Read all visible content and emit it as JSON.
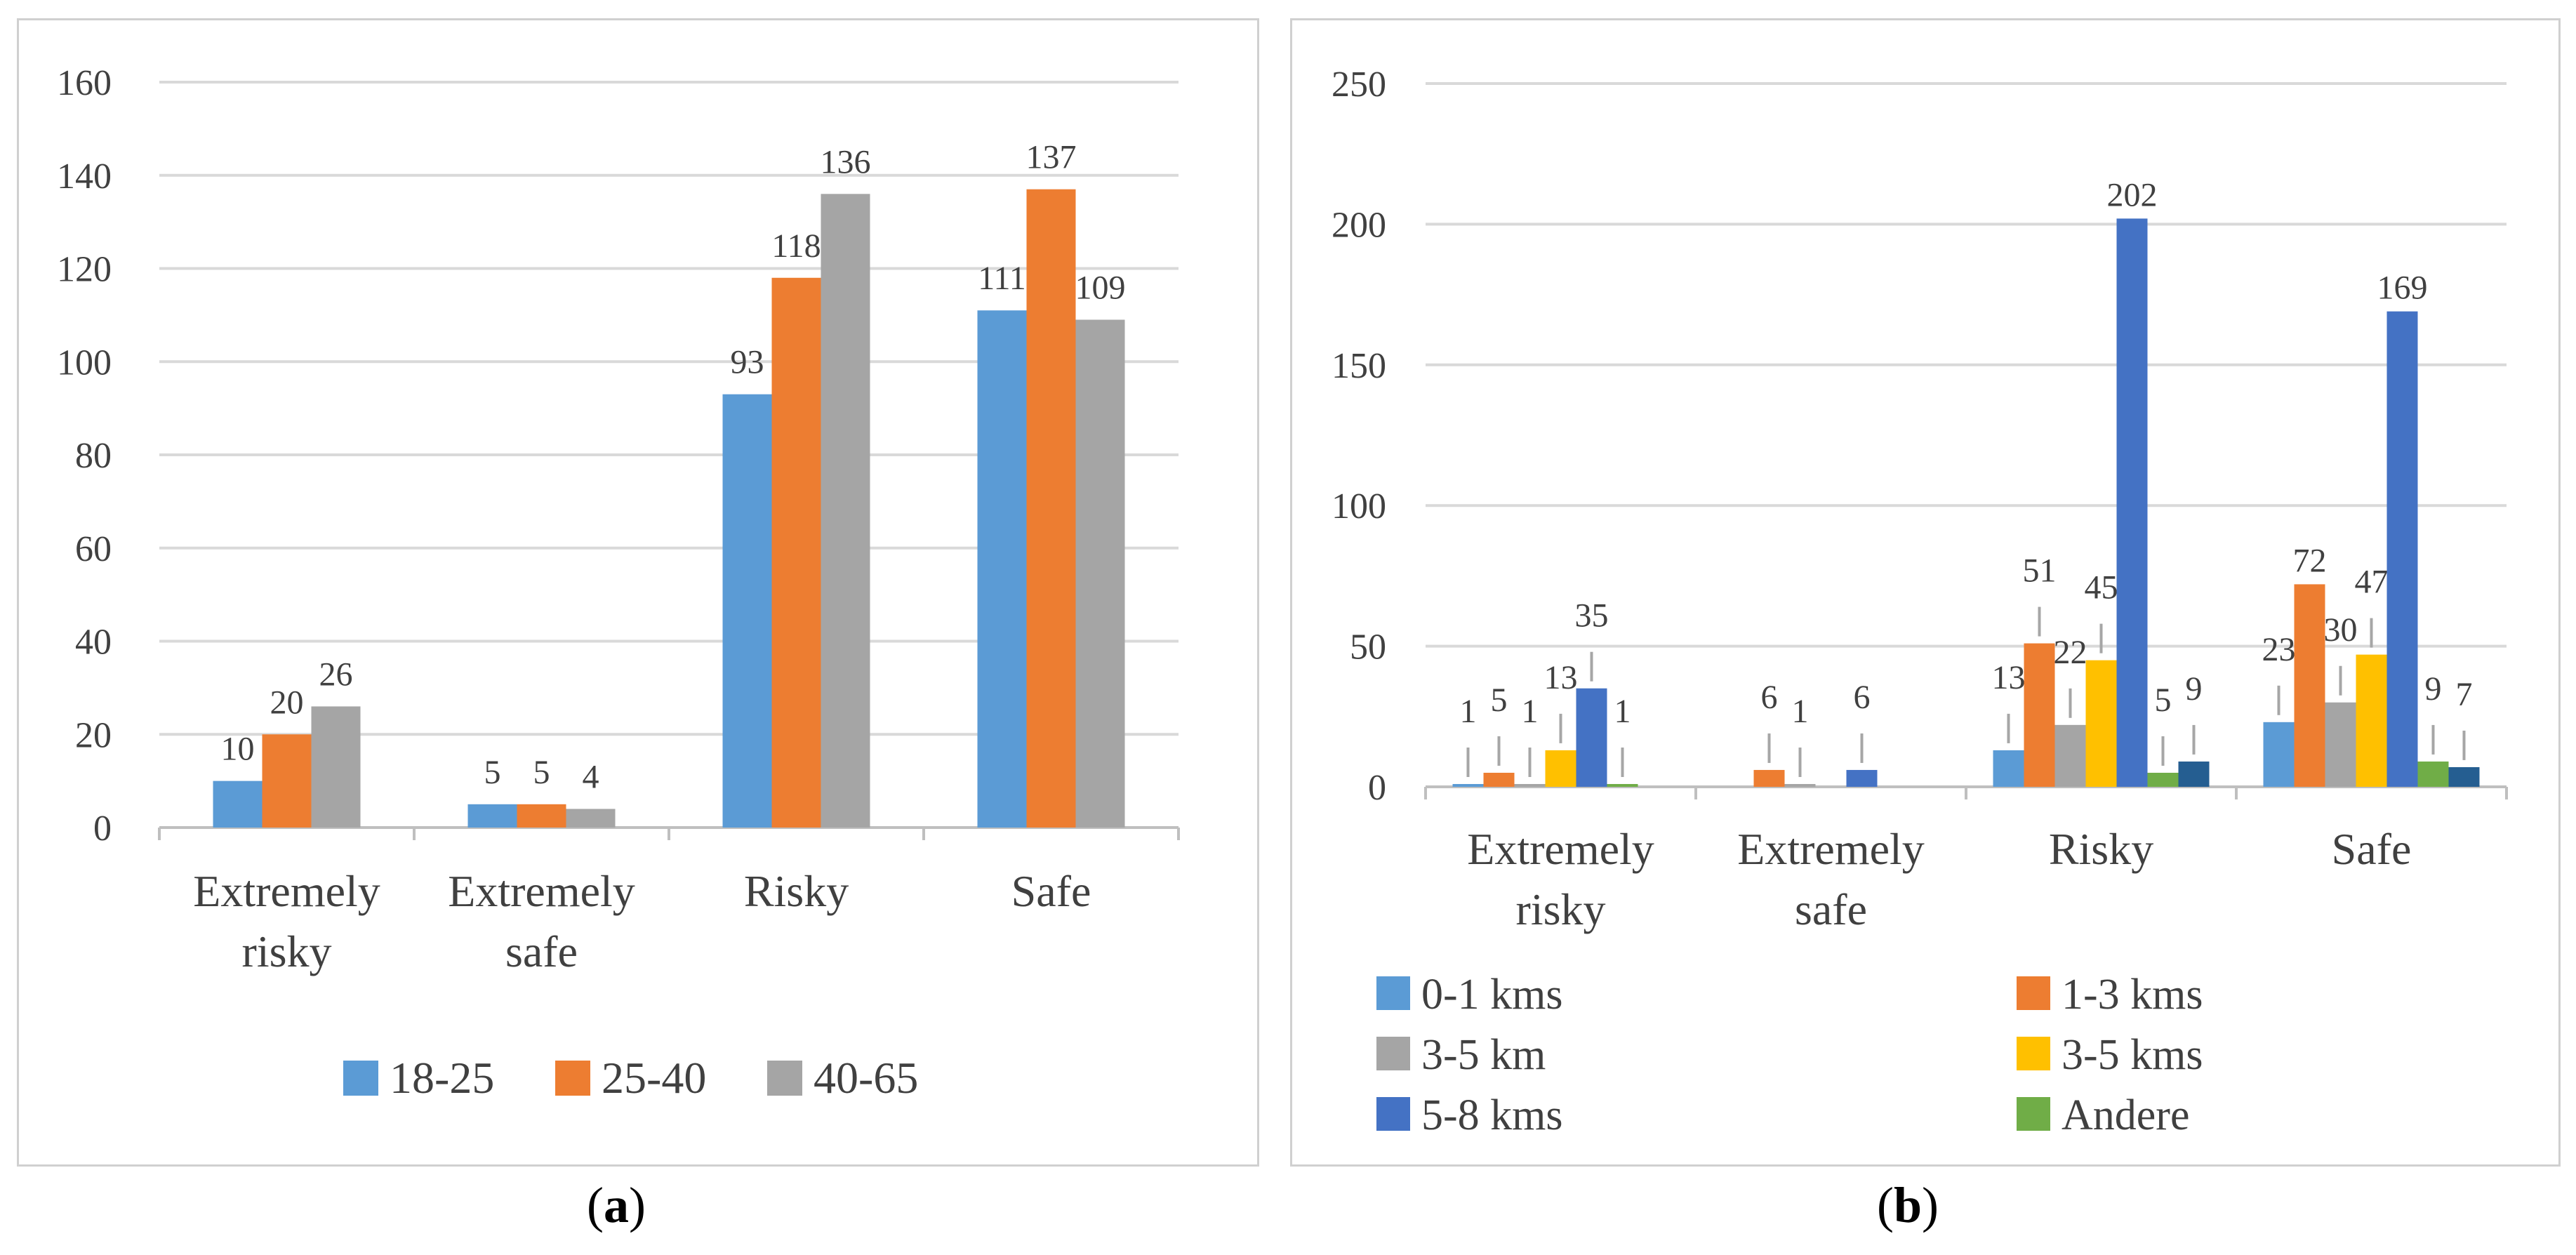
{
  "charts": {
    "a": {
      "caption": {
        "open": "(",
        "letter": "a",
        "close": ")"
      }
    },
    "b": {
      "caption": {
        "open": "(",
        "letter": "b",
        "close": ")"
      }
    }
  },
  "chart_data": [
    {
      "id": "a",
      "type": "bar",
      "categories": [
        [
          "Extremely",
          "risky"
        ],
        [
          "Extremely",
          "safe"
        ],
        [
          "Risky"
        ],
        [
          "Safe"
        ]
      ],
      "series": [
        {
          "name": "18-25",
          "color": "#5b9bd5",
          "values": [
            10,
            5,
            93,
            111
          ]
        },
        {
          "name": "25-40",
          "color": "#ed7d31",
          "values": [
            20,
            5,
            118,
            137
          ]
        },
        {
          "name": "40-65",
          "color": "#a5a5a5",
          "values": [
            26,
            4,
            136,
            109
          ]
        }
      ],
      "ylim": [
        0,
        160
      ],
      "yticks": [
        0,
        20,
        40,
        60,
        80,
        100,
        120,
        140,
        160
      ],
      "grid": true,
      "legend": "bottom"
    },
    {
      "id": "b",
      "type": "bar",
      "categories": [
        [
          "Extremely",
          "risky"
        ],
        [
          "Extremely",
          "safe"
        ],
        [
          "Risky"
        ],
        [
          "Safe"
        ]
      ],
      "series": [
        {
          "name": "0-1 kms",
          "color": "#5b9bd5",
          "values": [
            1,
            null,
            13,
            23
          ],
          "labels": [
            "1",
            "",
            "13",
            "23"
          ]
        },
        {
          "name": "1-3 kms",
          "color": "#ed7d31",
          "values": [
            5,
            6,
            51,
            72
          ],
          "labels": [
            "5",
            "6",
            "51",
            "72"
          ]
        },
        {
          "name": "3-5 km",
          "color": "#a5a5a5",
          "values": [
            1,
            1,
            22,
            30
          ],
          "labels": [
            "1",
            "1",
            "22",
            "30"
          ]
        },
        {
          "name": "3-5 kms",
          "color": "#ffc000",
          "values": [
            13,
            null,
            45,
            47
          ],
          "labels": [
            "13",
            "",
            "45",
            "47"
          ]
        },
        {
          "name": "5-8 kms",
          "color": "#4472c4",
          "values": [
            35,
            6,
            202,
            169
          ],
          "labels": [
            "35",
            "6",
            "202",
            "169"
          ]
        },
        {
          "name": "Andere",
          "color": "#70ad47",
          "values": [
            1,
            null,
            5,
            9
          ],
          "labels": [
            "1",
            "",
            "5",
            "9"
          ]
        },
        {
          "name": "",
          "color": "#255e91",
          "values": [
            null,
            null,
            9,
            7
          ],
          "labels": [
            "",
            "",
            "9",
            "7"
          ]
        }
      ],
      "ylim": [
        0,
        250
      ],
      "yticks": [
        0,
        50,
        100,
        150,
        200,
        250
      ],
      "grid": true,
      "legend": "bottom"
    }
  ]
}
